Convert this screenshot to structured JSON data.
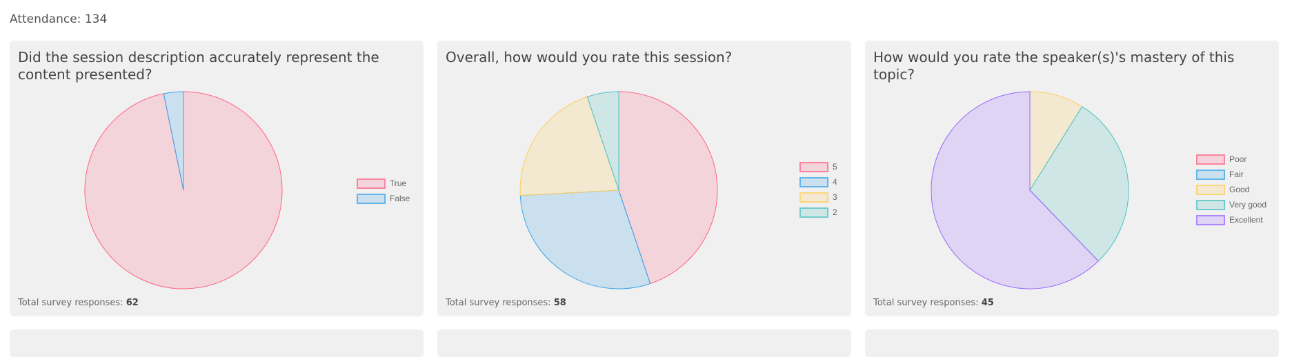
{
  "attendance": {
    "label": "Attendance:",
    "value": "134"
  },
  "footer_label": "Total survey responses:",
  "chart_data": [
    {
      "type": "pie",
      "title": "Did the session description accurately represent the content presented?",
      "categories": [
        "True",
        "False"
      ],
      "values": [
        60,
        2
      ],
      "colors": [
        "#ff6384",
        "#36a2eb"
      ],
      "total": "62",
      "legend": "right"
    },
    {
      "type": "pie",
      "title": "Overall, how would you rate this session?",
      "categories": [
        "5",
        "4",
        "3",
        "2"
      ],
      "values": [
        26,
        17,
        12,
        3
      ],
      "colors": [
        "#ff6384",
        "#36a2eb",
        "#ffcd56",
        "#4bc0c0"
      ],
      "total": "58",
      "legend": "right"
    },
    {
      "type": "pie",
      "title": "How would you rate the speaker(s)'s mastery of this topic?",
      "categories": [
        "Poor",
        "Fair",
        "Good",
        "Very good",
        "Excellent"
      ],
      "values": [
        0,
        0,
        4,
        13,
        28
      ],
      "colors": [
        "#ff6384",
        "#36a2eb",
        "#ffcd56",
        "#4bc0c0",
        "#9966ff"
      ],
      "total": "45",
      "legend": "right"
    }
  ]
}
